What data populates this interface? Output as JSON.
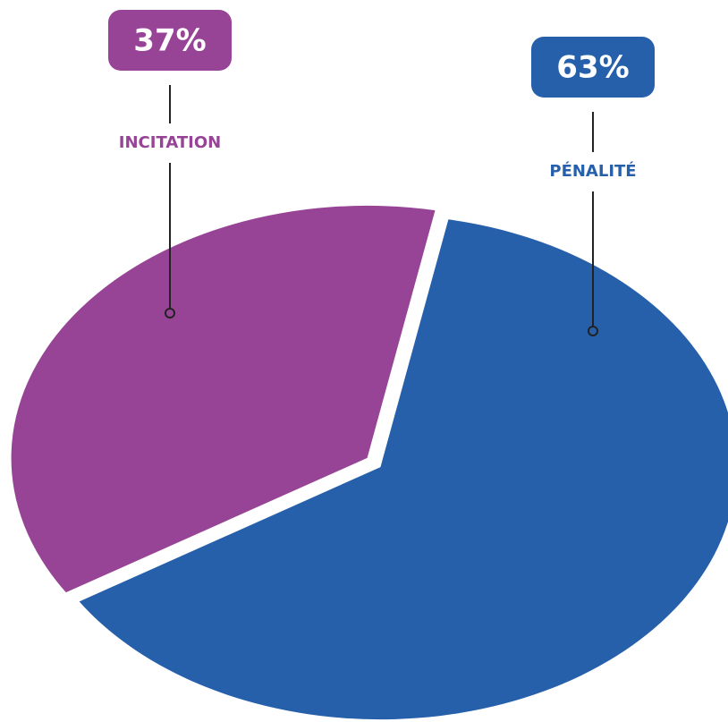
{
  "chart_data": {
    "type": "pie",
    "categories": [
      "INCITATION",
      "PÉNALITÉ"
    ],
    "values": [
      37,
      63
    ],
    "value_labels": [
      "37%",
      "63%"
    ],
    "colors": [
      "#974496",
      "#2660ab"
    ]
  }
}
